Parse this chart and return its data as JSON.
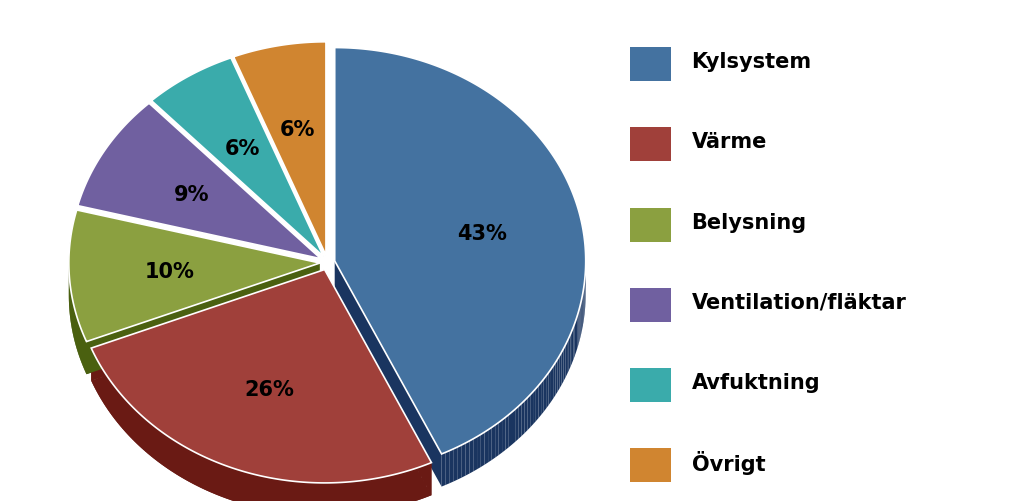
{
  "labels": [
    "Kylsystem",
    "Värme",
    "Belysning",
    "Ventilation/fläktar",
    "Avfuktning",
    "Övrigt"
  ],
  "values": [
    43,
    26,
    10,
    9,
    6,
    6
  ],
  "colors": [
    "#4472A0",
    "#A0403A",
    "#8BA040",
    "#7060A0",
    "#3AABAB",
    "#D08530"
  ],
  "dark_colors": [
    "#1A3560",
    "#6A1A14",
    "#4A6010",
    "#3A2060",
    "#0A6060",
    "#906010"
  ],
  "explode": [
    0.03,
    0.03,
    0.03,
    0.03,
    0.03,
    0.03
  ],
  "pct_labels": [
    "43%",
    "26%",
    "10%",
    "9%",
    "6%",
    "6%"
  ],
  "legend_labels": [
    "Kylsystem",
    "Värme",
    "Belysning",
    "Ventilation/fläktar",
    "Avfuktning",
    "Övrigt"
  ],
  "background_color": "#ffffff",
  "label_fontsize": 15,
  "legend_fontsize": 15,
  "start_angle": 90,
  "depth": 0.13
}
